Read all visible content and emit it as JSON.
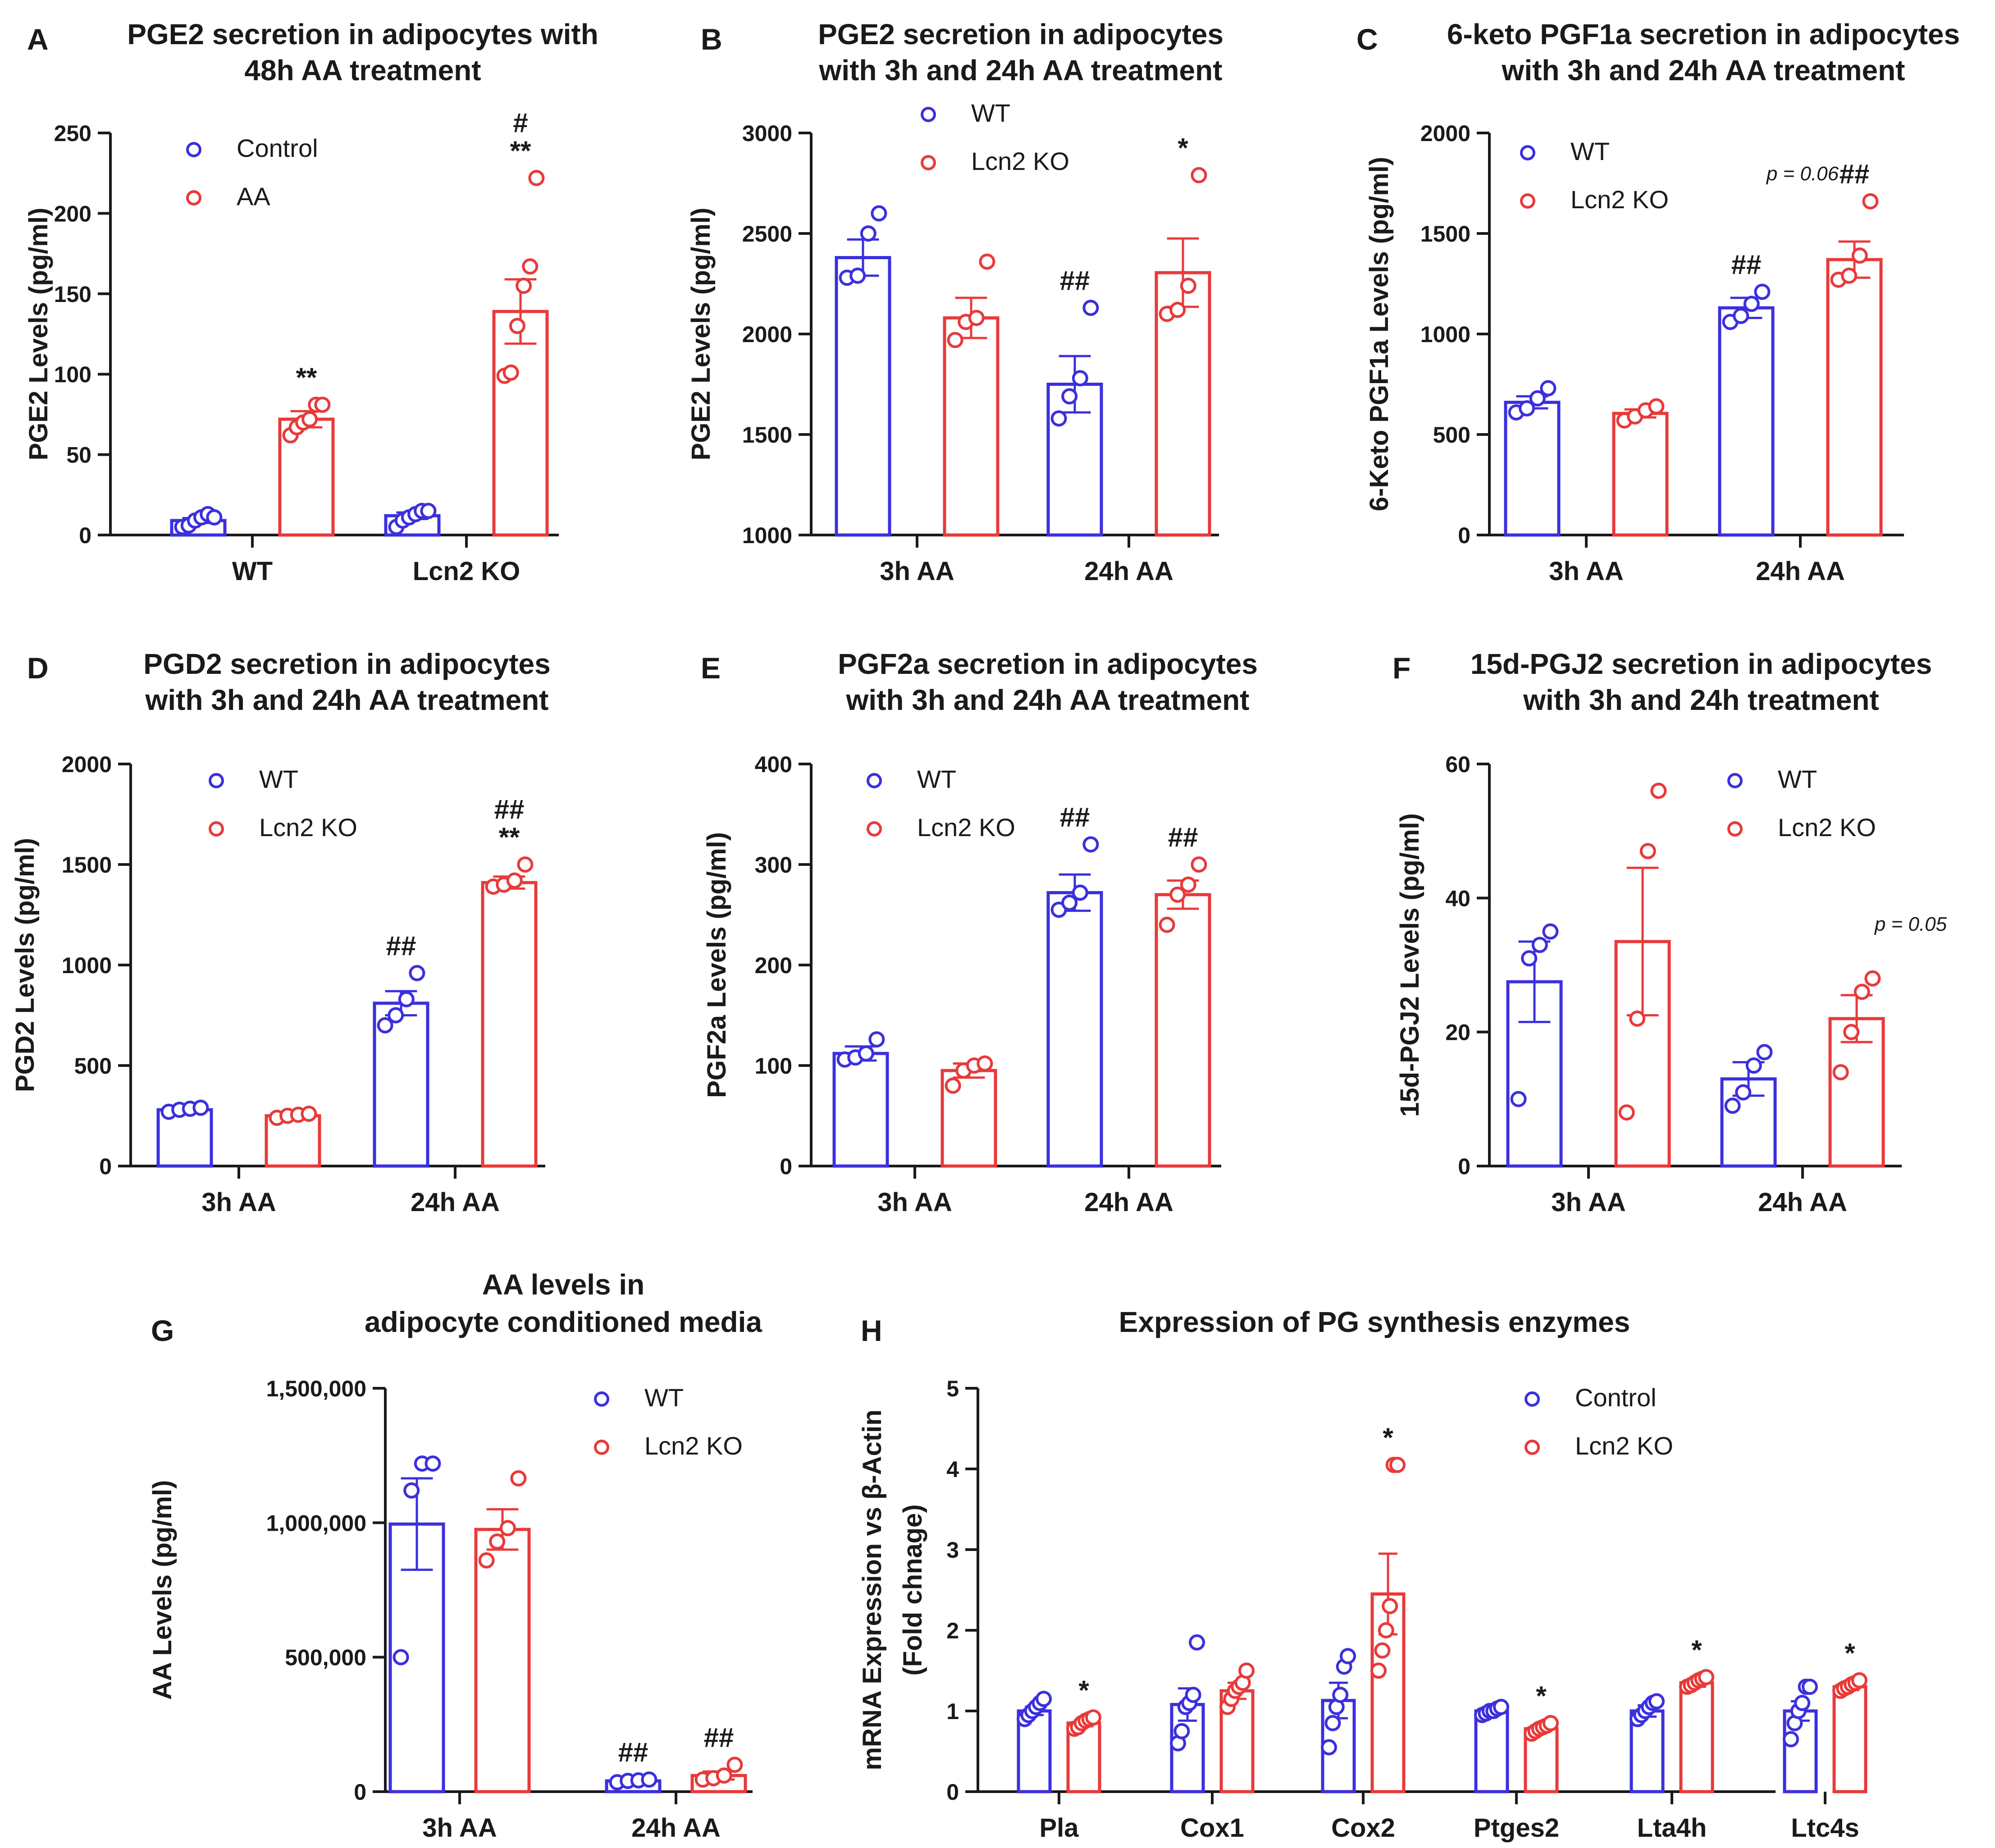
{
  "figure": {
    "colors": {
      "wt": "#3b30dd",
      "ko": "#e83a3a",
      "axis": "#1a1a1a"
    }
  },
  "chart_data": [
    {
      "panel": "A",
      "type": "bar",
      "title": [
        "PGE2 secretion in adipocytes with",
        "48h AA treatment"
      ],
      "xlabel": "",
      "ylabel": "PGE2 Levels (pg/ml)",
      "ylim": [
        0,
        250
      ],
      "yticks": [
        0,
        50,
        100,
        150,
        200,
        250
      ],
      "ytick_labels": [
        "0",
        "50",
        "100",
        "150",
        "200",
        "250"
      ],
      "categories": [
        "WT",
        "Lcn2 KO"
      ],
      "legend": {
        "entries": [
          "Control",
          "AA"
        ],
        "placement": "top-left"
      },
      "series": [
        {
          "name": "Control",
          "values": [
            9,
            12
          ],
          "sem": [
            1.5,
            2
          ],
          "points": [
            [
              5,
              6,
              9,
              11,
              13,
              11
            ],
            [
              5,
              9,
              11,
              13,
              15,
              15
            ]
          ],
          "annotations": [
            "",
            ""
          ]
        },
        {
          "name": "AA",
          "values": [
            72,
            139
          ],
          "sem": [
            5,
            20
          ],
          "points": [
            [
              62,
              67,
              70,
              72,
              81,
              81
            ],
            [
              99,
              101,
              130,
              155,
              167,
              222
            ]
          ],
          "annotations": [
            "**",
            "**\n#"
          ]
        }
      ]
    },
    {
      "panel": "B",
      "type": "bar",
      "title": [
        "PGE2 secretion in adipocytes",
        "with 3h and 24h AA treatment"
      ],
      "xlabel": "",
      "ylabel": "PGE2 Levels (pg/ml)",
      "ylim": [
        1000,
        3000
      ],
      "yticks": [
        1000,
        1500,
        2000,
        2500,
        3000
      ],
      "ytick_labels": [
        "1000",
        "1500",
        "2000",
        "2500",
        "3000"
      ],
      "categories": [
        "3h AA",
        "24h AA"
      ],
      "legend": {
        "entries": [
          "WT",
          "Lcn2 KO"
        ],
        "placement": "top-center"
      },
      "series": [
        {
          "name": "WT",
          "values": [
            2380,
            1750
          ],
          "sem": [
            90,
            140
          ],
          "points": [
            [
              2280,
              2290,
              2500,
              2600
            ],
            [
              1580,
              1690,
              1780,
              2130
            ]
          ],
          "annotations": [
            "",
            "##"
          ]
        },
        {
          "name": "Lcn2 KO",
          "values": [
            2080,
            2305
          ],
          "sem": [
            100,
            170
          ],
          "points": [
            [
              1970,
              2060,
              2080,
              2360
            ],
            [
              2100,
              2120,
              2240,
              2790
            ]
          ],
          "annotations": [
            "",
            "*"
          ]
        }
      ]
    },
    {
      "panel": "C",
      "type": "bar",
      "title": [
        "6-keto PGF1a secretion in adipocytes",
        "with 3h and 24h AA treatment"
      ],
      "xlabel": "",
      "ylabel": "6-Keto PGF1a Levels (pg/ml)",
      "ylim": [
        0,
        2000
      ],
      "yticks": [
        0,
        500,
        1000,
        1500,
        2000
      ],
      "ytick_labels": [
        "0",
        "500",
        "1000",
        "1500",
        "2000"
      ],
      "categories": [
        "3h AA",
        "24h AA"
      ],
      "legend": {
        "entries": [
          "WT",
          "Lcn2 KO"
        ],
        "placement": "top-left"
      },
      "series": [
        {
          "name": "WT",
          "values": [
            660,
            1130
          ],
          "sem": [
            30,
            50
          ],
          "points": [
            [
              610,
              630,
              680,
              730
            ],
            [
              1060,
              1090,
              1150,
              1210
            ]
          ],
          "annotations": [
            "",
            "##"
          ]
        },
        {
          "name": "Lcn2 KO",
          "values": [
            605,
            1370
          ],
          "sem": [
            20,
            90
          ],
          "points": [
            [
              570,
              590,
              620,
              640
            ],
            [
              1270,
              1290,
              1390,
              1660
            ]
          ],
          "annotations": [
            "",
            "##"
          ]
        }
      ],
      "notes": [
        "p = 0.06"
      ]
    },
    {
      "panel": "D",
      "type": "bar",
      "title": [
        "PGD2 secretion in adipocytes",
        "with 3h and 24h AA treatment"
      ],
      "xlabel": "",
      "ylabel": "PGD2 Levels (pg/ml)",
      "ylim": [
        0,
        2000
      ],
      "yticks": [
        0,
        500,
        1000,
        1500,
        2000
      ],
      "ytick_labels": [
        "0",
        "500",
        "1000",
        "1500",
        "2000"
      ],
      "categories": [
        "3h AA",
        "24h AA"
      ],
      "legend": {
        "entries": [
          "WT",
          "Lcn2 KO"
        ],
        "placement": "top-left"
      },
      "series": [
        {
          "name": "WT",
          "values": [
            280,
            810
          ],
          "sem": [
            10,
            60
          ],
          "points": [
            [
              270,
              280,
              285,
              290
            ],
            [
              700,
              750,
              830,
              960
            ]
          ],
          "annotations": [
            "",
            "##"
          ]
        },
        {
          "name": "Lcn2 KO",
          "values": [
            250,
            1410
          ],
          "sem": [
            10,
            30
          ],
          "points": [
            [
              240,
              250,
              255,
              260
            ],
            [
              1390,
              1400,
              1420,
              1500
            ]
          ],
          "annotations": [
            "",
            "**\n##"
          ]
        }
      ]
    },
    {
      "panel": "E",
      "type": "bar",
      "title": [
        "PGF2a secretion in adipocytes",
        "with 3h and 24h AA treatment"
      ],
      "xlabel": "",
      "ylabel": "PGF2a Levels (pg/ml)",
      "ylim": [
        0,
        400
      ],
      "yticks": [
        0,
        100,
        200,
        300,
        400
      ],
      "ytick_labels": [
        "0",
        "100",
        "200",
        "300",
        "400"
      ],
      "categories": [
        "3h AA",
        "24h AA"
      ],
      "legend": {
        "entries": [
          "WT",
          "Lcn2 KO"
        ],
        "placement": "top-left"
      },
      "series": [
        {
          "name": "WT",
          "values": [
            112,
            272
          ],
          "sem": [
            7,
            18
          ],
          "points": [
            [
              106,
              108,
              112,
              126
            ],
            [
              255,
              262,
              272,
              320
            ]
          ],
          "annotations": [
            "",
            "##"
          ]
        },
        {
          "name": "Lcn2 KO",
          "values": [
            95,
            270
          ],
          "sem": [
            7,
            14
          ],
          "points": [
            [
              80,
              95,
              100,
              102
            ],
            [
              240,
              270,
              280,
              300
            ]
          ],
          "annotations": [
            "",
            "##"
          ]
        }
      ]
    },
    {
      "panel": "F",
      "type": "bar",
      "title": [
        "15d-PGJ2 secretion in adipocytes",
        "with 3h and 24h treatment"
      ],
      "xlabel": "",
      "ylabel": "15d-PGJ2 Levels (pg/ml)",
      "ylim": [
        0,
        60
      ],
      "yticks": [
        0,
        20,
        40,
        60
      ],
      "ytick_labels": [
        "0",
        "20",
        "40",
        "60"
      ],
      "categories": [
        "3h AA",
        "24h AA"
      ],
      "legend": {
        "entries": [
          "WT",
          "Lcn2 KO"
        ],
        "placement": "top-right"
      },
      "series": [
        {
          "name": "WT",
          "values": [
            27.5,
            13
          ],
          "sem": [
            6,
            2.5
          ],
          "points": [
            [
              10,
              31,
              33,
              35
            ],
            [
              9,
              11,
              15,
              17
            ]
          ],
          "annotations": [
            "",
            ""
          ]
        },
        {
          "name": "Lcn2 KO",
          "values": [
            33.5,
            22
          ],
          "sem": [
            11,
            3.5
          ],
          "points": [
            [
              8,
              22,
              47,
              56
            ],
            [
              14,
              20,
              26,
              28
            ]
          ],
          "annotations": [
            "",
            ""
          ]
        }
      ],
      "notes": [
        "p = 0.05"
      ]
    },
    {
      "panel": "G",
      "type": "bar",
      "title": [
        "AA levels in",
        "adipocyte conditioned media"
      ],
      "xlabel": "",
      "ylabel": "AA Levels (pg/ml)",
      "ylim": [
        0,
        1500000
      ],
      "yticks": [
        0,
        500000,
        1000000,
        1500000
      ],
      "ytick_labels": [
        "0",
        "500,000",
        "1,000,000",
        "1,500,000"
      ],
      "categories": [
        "3h AA",
        "24h AA"
      ],
      "legend": {
        "entries": [
          "WT",
          "Lcn2 KO"
        ],
        "placement": "top-right"
      },
      "series": [
        {
          "name": "WT",
          "values": [
            995000,
            40000
          ],
          "sem": [
            170000,
            5000
          ],
          "points": [
            [
              500000,
              1120000,
              1220000,
              1220000
            ],
            [
              35000,
              40000,
              42000,
              45000
            ]
          ],
          "annotations": [
            "",
            "##"
          ]
        },
        {
          "name": "Lcn2 KO",
          "values": [
            975000,
            60000
          ],
          "sem": [
            75000,
            15000
          ],
          "points": [
            [
              860000,
              930000,
              980000,
              1165000
            ],
            [
              45000,
              50000,
              60000,
              100000
            ]
          ],
          "annotations": [
            "",
            "##"
          ]
        }
      ]
    },
    {
      "panel": "H",
      "type": "bar",
      "title": [
        "Expression of PG synthesis enzymes"
      ],
      "xlabel": "",
      "ylabel": [
        "mRNA Expression vs β-Actin",
        "(Fold chnage)"
      ],
      "ylim": [
        0,
        5
      ],
      "yticks": [
        0,
        1,
        2,
        3,
        4,
        5
      ],
      "ytick_labels": [
        "0",
        "1",
        "2",
        "3",
        "4",
        "5"
      ],
      "categories": [
        "Pla",
        "Cox1",
        "Cox2",
        "Ptges2",
        "Lta4h",
        "Ltc4s"
      ],
      "legend": {
        "entries": [
          "Control",
          "Lcn2 KO"
        ],
        "placement": "top-right"
      },
      "series": [
        {
          "name": "Control",
          "values": [
            1.0,
            1.08,
            1.13,
            1.0,
            1.0,
            1.0
          ],
          "sem": [
            0.05,
            0.2,
            0.22,
            0.03,
            0.07,
            0.12
          ],
          "points": [
            [
              0.9,
              0.95,
              1.0,
              1.05,
              1.1,
              1.15
            ],
            [
              0.6,
              0.75,
              1.05,
              1.1,
              1.2,
              1.85
            ],
            [
              0.55,
              0.85,
              1.05,
              1.2,
              1.55,
              1.68
            ],
            [
              0.95,
              0.97,
              1.0,
              1.0,
              1.03,
              1.05
            ],
            [
              0.9,
              0.95,
              1.0,
              1.05,
              1.1,
              1.12
            ],
            [
              0.65,
              0.85,
              1.0,
              1.1,
              1.3,
              1.3
            ]
          ],
          "annotations": [
            "",
            "",
            "",
            "",
            "",
            ""
          ]
        },
        {
          "name": "Lcn2 KO",
          "values": [
            0.85,
            1.25,
            2.45,
            0.78,
            1.35,
            1.3
          ],
          "sem": [
            0.04,
            0.1,
            0.5,
            0.03,
            0.05,
            0.04
          ],
          "points": [
            [
              0.78,
              0.8,
              0.85,
              0.88,
              0.9,
              0.92
            ],
            [
              1.05,
              1.15,
              1.25,
              1.3,
              1.35,
              1.5
            ],
            [
              1.5,
              1.75,
              2.0,
              2.3,
              4.05,
              4.05
            ],
            [
              0.72,
              0.75,
              0.78,
              0.8,
              0.82,
              0.85
            ],
            [
              1.3,
              1.32,
              1.35,
              1.38,
              1.4,
              1.42
            ],
            [
              1.25,
              1.28,
              1.3,
              1.33,
              1.35,
              1.38
            ]
          ],
          "annotations": [
            "*",
            "",
            "*",
            "*",
            "*",
            "*"
          ]
        }
      ]
    }
  ]
}
